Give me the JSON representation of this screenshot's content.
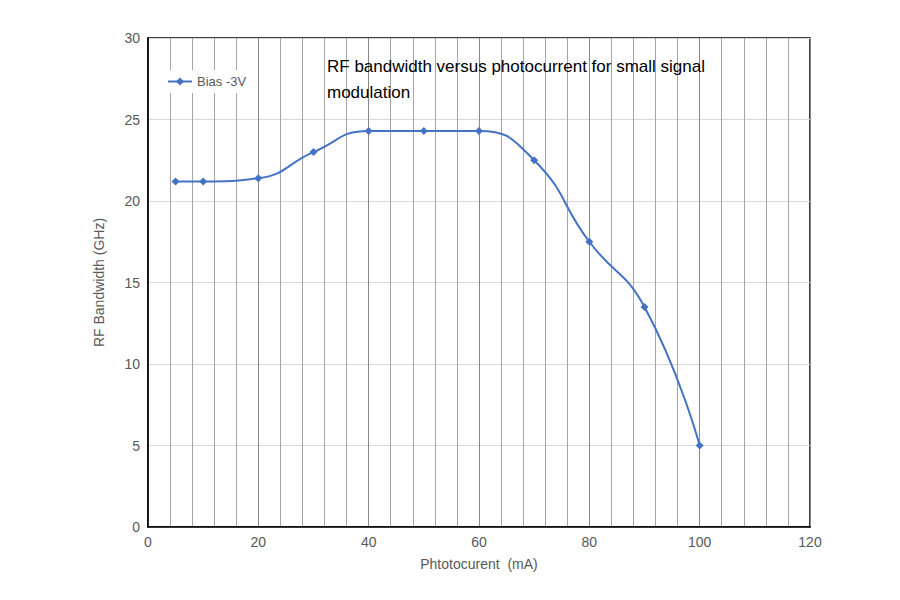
{
  "chart_data": {
    "type": "line",
    "title": "RF bandwidth versus photocurrent for small signal modulation",
    "x_label": "Phtotocurent  (mA)",
    "y_label": "RF Bandwidth (GHz)",
    "x": [
      5,
      10,
      20,
      30,
      40,
      50,
      60,
      70,
      80,
      90,
      100
    ],
    "series": [
      {
        "name": "Bias -3V",
        "color": "#4472c4",
        "marker": "diamond",
        "values": [
          21.2,
          21.2,
          21.4,
          23.0,
          24.3,
          24.3,
          24.3,
          22.5,
          17.5,
          13.5,
          5.0
        ]
      }
    ],
    "xlim": [
      0,
      120
    ],
    "xticks": [
      0,
      20,
      40,
      60,
      80,
      100,
      120
    ],
    "ylim": [
      0,
      30
    ],
    "yticks": [
      0,
      5,
      10,
      15,
      20,
      25,
      30
    ],
    "grid": true,
    "legend": "upper left"
  }
}
